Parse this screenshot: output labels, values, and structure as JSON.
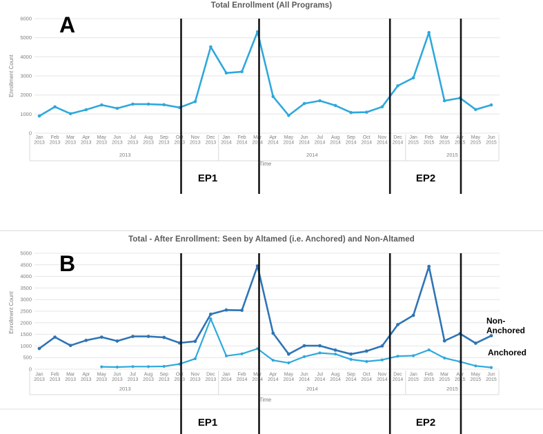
{
  "chart_data": [
    {
      "type": "line",
      "panel_label": "A",
      "title": "Total Enrollment (All Programs)",
      "xlabel": "Time",
      "ylabel": "Enrollment Count",
      "ylim": [
        0,
        6000
      ],
      "ytick_step": 1000,
      "grid": true,
      "legend_position": "none",
      "x": [
        "Jan 2013",
        "Feb 2013",
        "Mar 2013",
        "Apr 2013",
        "May 2013",
        "Jun 2013",
        "Jul 2013",
        "Aug 2013",
        "Sep 2013",
        "Oct 2013",
        "Nov 2013",
        "Dec 2013",
        "Jan 2014",
        "Feb 2014",
        "Mar 2014",
        "Apr 2014",
        "May 2014",
        "Jun 2014",
        "Jul 2014",
        "Aug 2014",
        "Sep 2014",
        "Oct 2014",
        "Nov 2014",
        "Dec 2014",
        "Jan 2015",
        "Feb 2015",
        "Mar 2015",
        "Apr 2015",
        "May 2015",
        "Jun 2015"
      ],
      "year_groups": [
        {
          "label": "2013",
          "from": 0,
          "to": 11
        },
        {
          "label": "2014",
          "from": 12,
          "to": 23
        },
        {
          "label": "2015",
          "from": 24,
          "to": 29
        }
      ],
      "series": [
        {
          "name": "Total Enrollment",
          "color": "#2EA8DC",
          "values": [
            900,
            1380,
            1020,
            1230,
            1480,
            1300,
            1520,
            1520,
            1490,
            1340,
            1650,
            4520,
            3150,
            3220,
            5310,
            1920,
            930,
            1550,
            1700,
            1450,
            1080,
            1100,
            1380,
            2480,
            2900,
            5270,
            1700,
            1840,
            1240,
            1480
          ]
        }
      ],
      "event_lines": [
        {
          "at": "Oct 2013",
          "index": 9.1
        },
        {
          "at": "Mar 2014",
          "index": 14.1
        },
        {
          "at": "Nov/Dec 2014",
          "index": 22.5
        },
        {
          "at": "Apr 2015",
          "index": 27.05
        }
      ],
      "event_periods": [
        {
          "label": "EP1",
          "from": "Oct 2013",
          "to": "Mar 2014"
        },
        {
          "label": "EP2",
          "from": "Dec 2014",
          "to": "Apr 2015"
        }
      ],
      "event_line_color": "#141414"
    },
    {
      "type": "line",
      "panel_label": "B",
      "title": "Total - After Enrollment: Seen by Altamed (i.e. Anchored) and Non-Altamed",
      "xlabel": "Time",
      "ylabel": "Enrollment Count",
      "ylim": [
        0,
        5000
      ],
      "ytick_step": 500,
      "grid": true,
      "legend_position": "right-annotations",
      "x": [
        "Jan 2013",
        "Feb 2013",
        "Mar 2013",
        "Apr 2013",
        "May 2013",
        "Jun 2013",
        "Jul 2013",
        "Aug 2013",
        "Sep 2013",
        "Oct 2013",
        "Nov 2013",
        "Dec 2013",
        "Jan 2014",
        "Feb 2014",
        "Mar 2014",
        "Apr 2014",
        "May 2014",
        "Jun 2014",
        "Jul 2014",
        "Aug 2014",
        "Sep 2014",
        "Oct 2014",
        "Nov 2014",
        "Dec 2014",
        "Jan 2015",
        "Feb 2015",
        "Mar 2015",
        "Apr 2015",
        "May 2015",
        "Jun 2015"
      ],
      "year_groups": [
        {
          "label": "2013",
          "from": 0,
          "to": 11
        },
        {
          "label": "2014",
          "from": 12,
          "to": 23
        },
        {
          "label": "2015",
          "from": 24,
          "to": 29
        }
      ],
      "series": [
        {
          "name": "Non-Anchored",
          "color": "#2E74B5",
          "values": [
            890,
            1380,
            1020,
            1240,
            1380,
            1210,
            1410,
            1410,
            1370,
            1130,
            1200,
            2370,
            2550,
            2540,
            4450,
            1550,
            650,
            1010,
            1010,
            820,
            650,
            780,
            1000,
            1920,
            2320,
            4430,
            1220,
            1530,
            1120,
            1440
          ]
        },
        {
          "name": "Anchored",
          "color": "#2EA8DC",
          "values": [
            null,
            null,
            null,
            null,
            100,
            90,
            110,
            110,
            120,
            220,
            450,
            2170,
            570,
            660,
            880,
            380,
            270,
            540,
            700,
            650,
            420,
            330,
            400,
            560,
            580,
            830,
            480,
            320,
            140,
            70
          ]
        }
      ],
      "event_lines": [
        {
          "at": "Oct 2013",
          "index": 9.1
        },
        {
          "at": "Mar 2014",
          "index": 14.1
        },
        {
          "at": "Nov/Dec 2014",
          "index": 22.5
        },
        {
          "at": "Apr 2015",
          "index": 27.05
        }
      ],
      "event_periods": [
        {
          "label": "EP1",
          "from": "Oct 2013",
          "to": "Mar 2014"
        },
        {
          "label": "EP2",
          "from": "Dec 2014",
          "to": "Apr 2015"
        }
      ],
      "event_line_color": "#141414"
    }
  ]
}
